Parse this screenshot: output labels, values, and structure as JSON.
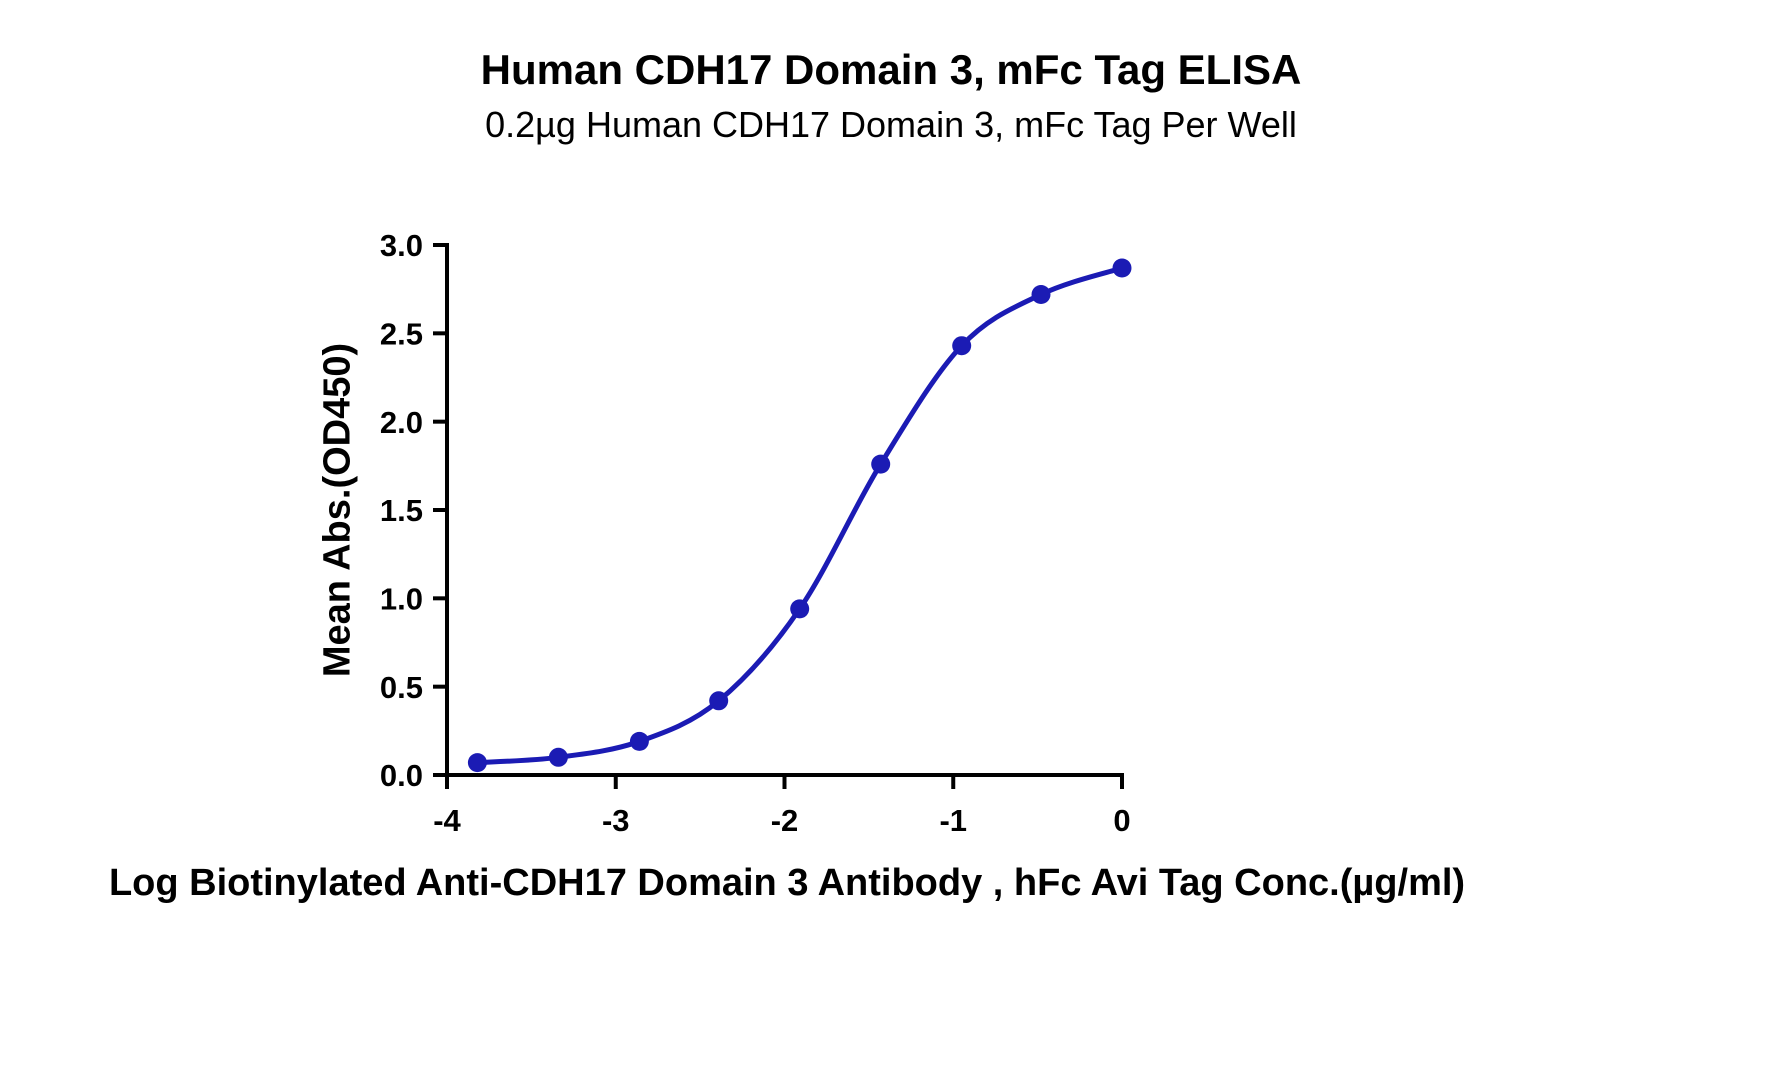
{
  "figure": {
    "background": "#ffffff"
  },
  "chart_data": {
    "type": "scatter",
    "curve": "sigmoidal-4pl-fit-line",
    "title": "Human CDH17 Domain 3, mFc Tag ELISA",
    "subtitle": "0.2µg Human CDH17 Domain 3, mFc Tag Per Well",
    "xlabel": "Log Biotinylated Anti-CDH17 Domain 3 Antibody , hFc Avi Tag Conc.(µg/ml)",
    "ylabel": "Mean Abs.(OD450)",
    "x": [
      -3.82,
      -3.34,
      -2.86,
      -2.39,
      -1.91,
      -1.43,
      -0.95,
      -0.48,
      0
    ],
    "y": [
      0.07,
      0.1,
      0.19,
      0.42,
      0.94,
      1.76,
      2.43,
      2.72,
      2.87
    ],
    "xlim": [
      -4,
      0
    ],
    "ylim": [
      0,
      3
    ],
    "xticks": [
      -4,
      -3,
      -2,
      -1,
      0
    ],
    "xtick_labels": [
      "-4",
      "-3",
      "-2",
      "-1",
      "0"
    ],
    "yticks": [
      0,
      0.5,
      1,
      1.5,
      2,
      2.5,
      3
    ],
    "ytick_labels": [
      "0.0",
      "0.5",
      "1.0",
      "1.5",
      "2.0",
      "2.5",
      "3.0"
    ],
    "grid": false,
    "legend": null,
    "colors": {
      "curve": "#1B1BB4",
      "marker": "#1B1BB4",
      "axis": "#000000",
      "text": "#000000"
    }
  }
}
